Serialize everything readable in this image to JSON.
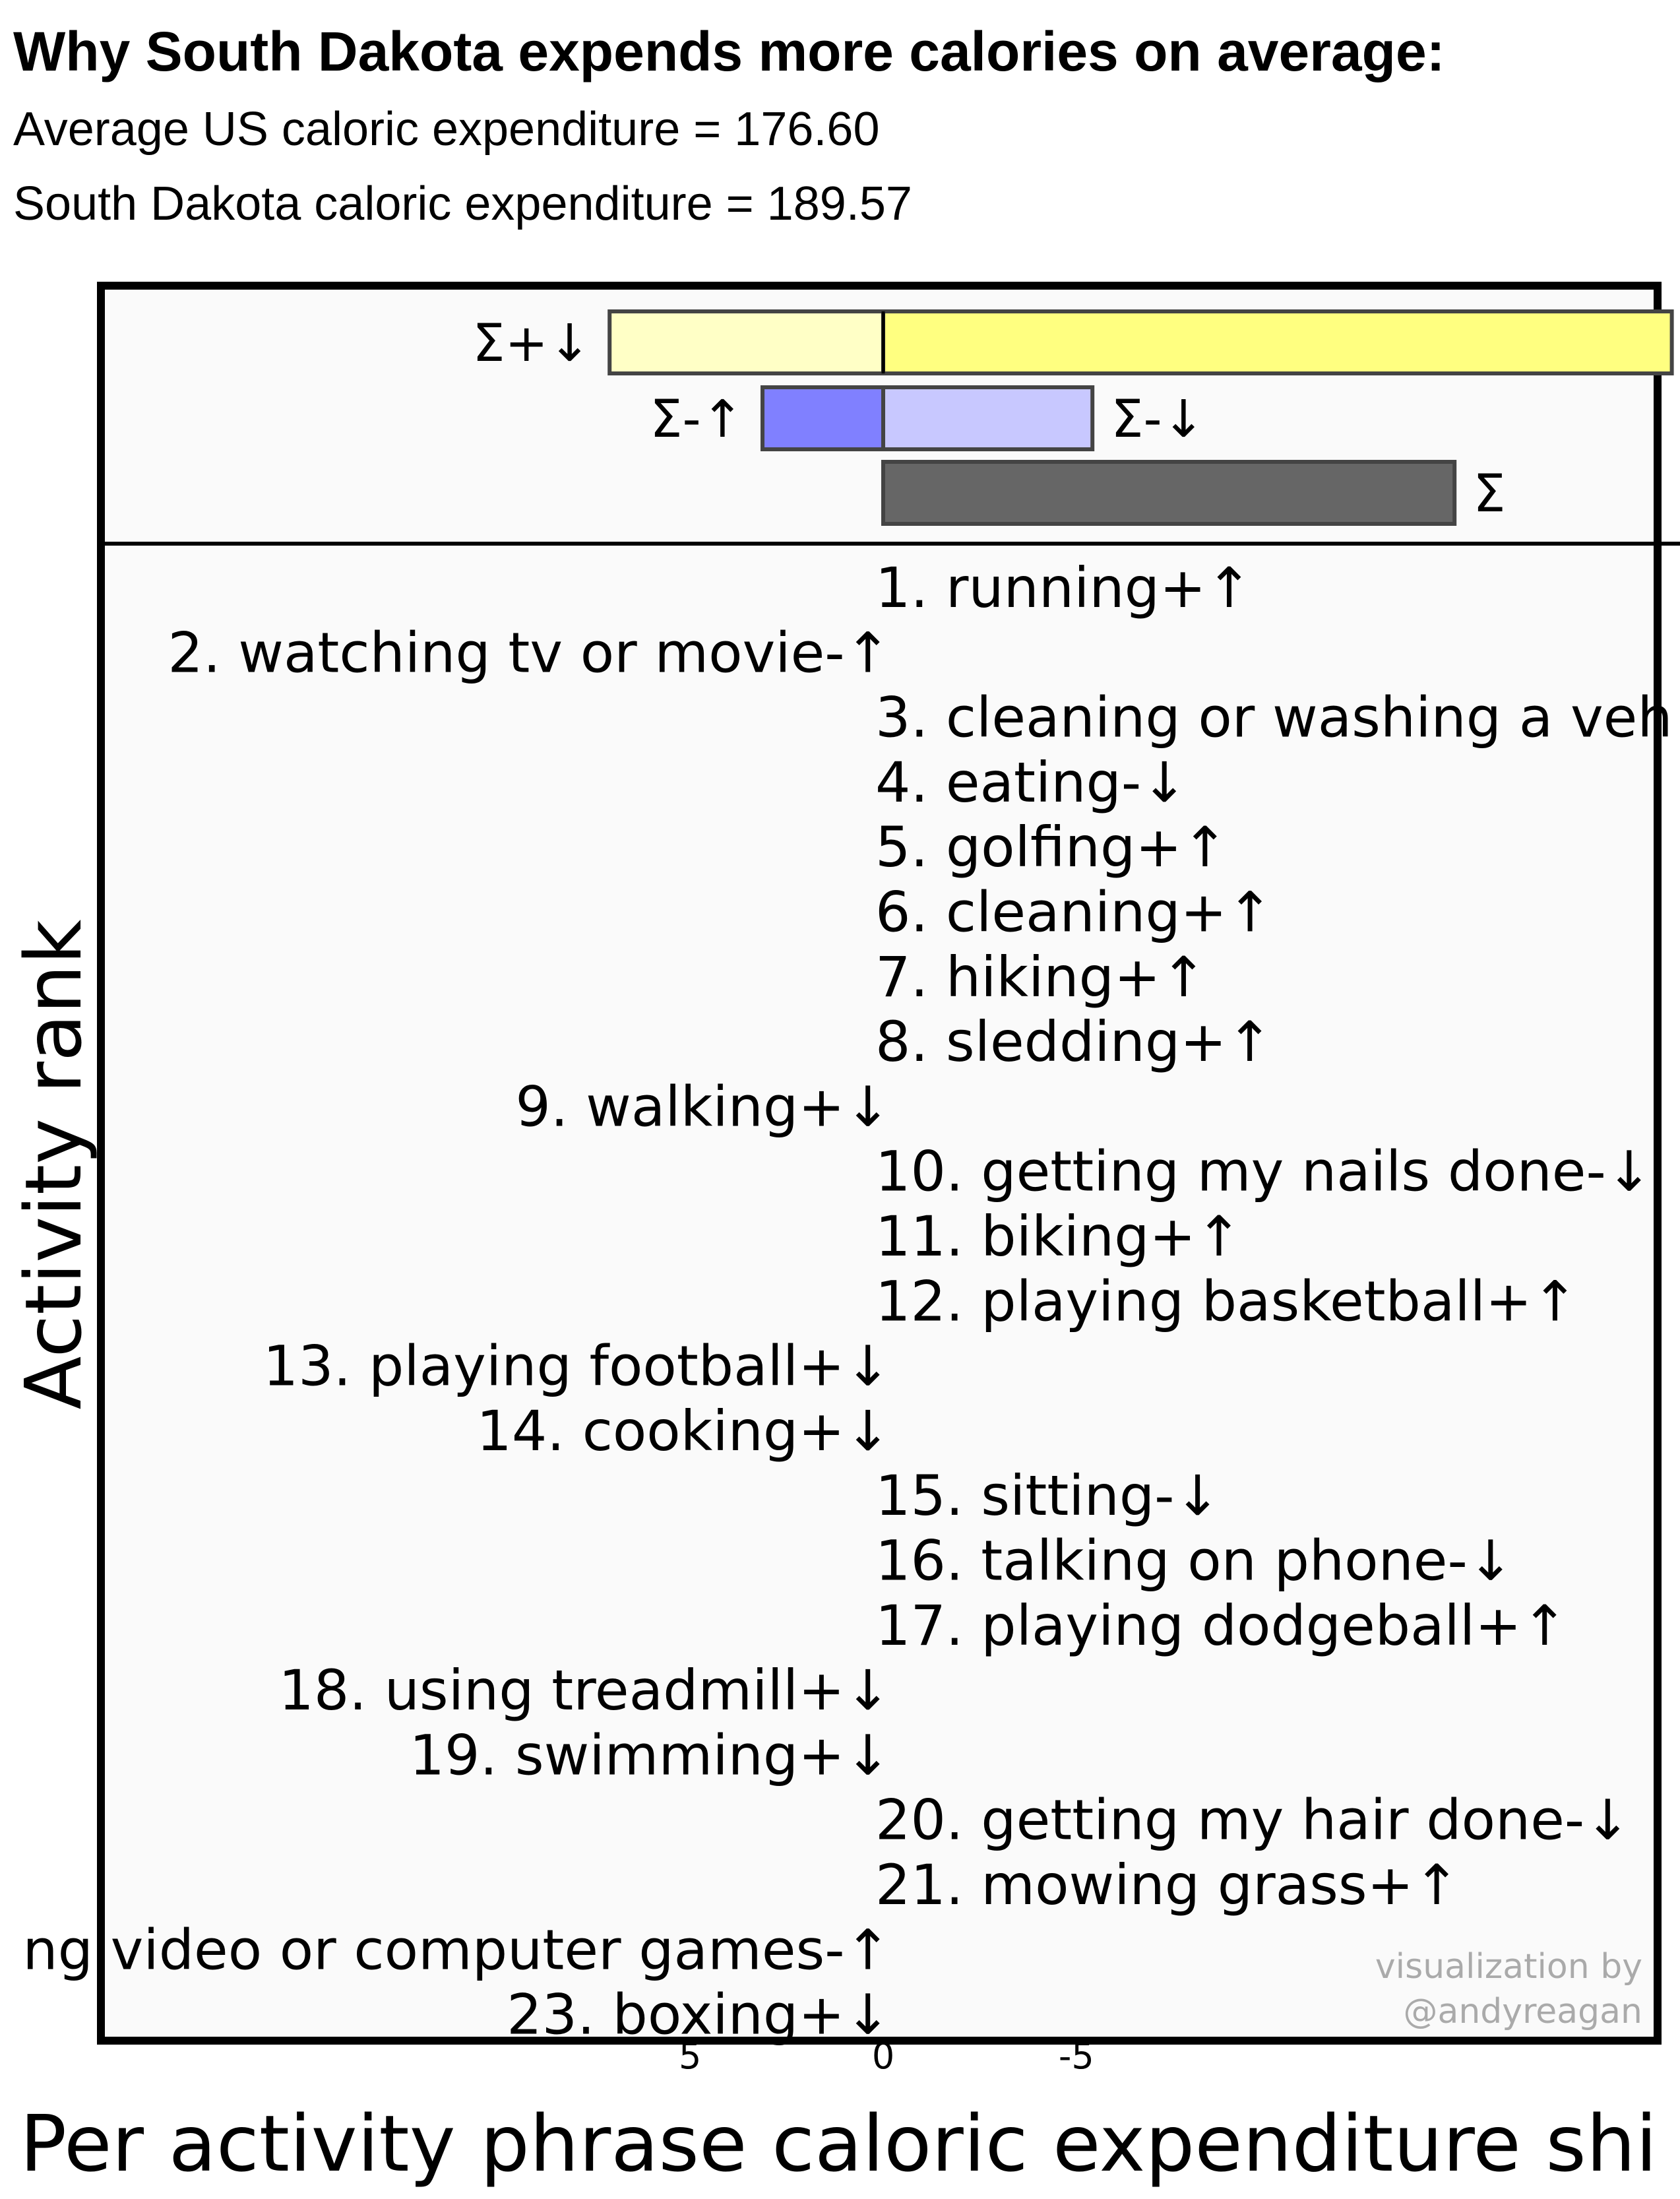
{
  "header": {
    "title": "Why South Dakota expends more calories on average:",
    "avg_line": "Average US caloric expenditure = 176.60",
    "state_line": "South Dakota caloric expenditure = 189.57"
  },
  "chart_data": {
    "type": "bar",
    "xlabel": "Per activity phrase caloric expenditure shi",
    "ylabel": "Activity rank",
    "x_axis_direction": "reversed",
    "x_ticks": [
      5,
      0,
      -5
    ],
    "summary": {
      "sum_pos_down": {
        "label": "Σ+↓",
        "value": 3.4
      },
      "sum_pos_up": {
        "label": "Σ+↑",
        "value": -9.8
      },
      "sum_neg_up": {
        "label": "Σ-↑",
        "value": 1.5
      },
      "sum_neg_down": {
        "label": "Σ-↓",
        "value": -2.6
      },
      "sum_total": {
        "label": "Σ",
        "value": -7.1
      }
    },
    "activities": [
      {
        "rank": 1,
        "label": "1. running+↑",
        "side": "right"
      },
      {
        "rank": 2,
        "label": "2. watching tv or movie-↑",
        "side": "left"
      },
      {
        "rank": 3,
        "label": "3. cleaning or washing a veh",
        "side": "right"
      },
      {
        "rank": 4,
        "label": "4. eating-↓",
        "side": "right"
      },
      {
        "rank": 5,
        "label": "5. golfing+↑",
        "side": "right"
      },
      {
        "rank": 6,
        "label": "6. cleaning+↑",
        "side": "right"
      },
      {
        "rank": 7,
        "label": "7. hiking+↑",
        "side": "right"
      },
      {
        "rank": 8,
        "label": "8. sledding+↑",
        "side": "right"
      },
      {
        "rank": 9,
        "label": "9. walking+↓",
        "side": "left"
      },
      {
        "rank": 10,
        "label": "10. getting my nails done-↓",
        "side": "right"
      },
      {
        "rank": 11,
        "label": "11. biking+↑",
        "side": "right"
      },
      {
        "rank": 12,
        "label": "12. playing basketball+↑",
        "side": "right"
      },
      {
        "rank": 13,
        "label": "13. playing football+↓",
        "side": "left"
      },
      {
        "rank": 14,
        "label": "14. cooking+↓",
        "side": "left"
      },
      {
        "rank": 15,
        "label": "15. sitting-↓",
        "side": "right"
      },
      {
        "rank": 16,
        "label": "16. talking on phone-↓",
        "side": "right"
      },
      {
        "rank": 17,
        "label": "17. playing dodgeball+↑",
        "side": "right"
      },
      {
        "rank": 18,
        "label": "18. using treadmill+↓",
        "side": "left"
      },
      {
        "rank": 19,
        "label": "19. swimming+↓",
        "side": "left"
      },
      {
        "rank": 20,
        "label": "20. getting my hair done-↓",
        "side": "right"
      },
      {
        "rank": 21,
        "label": "21. mowing grass+↑",
        "side": "right"
      },
      {
        "rank": 22,
        "label": "ng video or computer games-↑",
        "side": "left"
      },
      {
        "rank": 23,
        "label": "23. boxing+↓",
        "side": "left"
      }
    ],
    "credit": [
      "visualization by",
      "@andyreagan"
    ],
    "colors": {
      "sum_pos_down": "#ffffc6",
      "sum_pos_up": "#ffff80",
      "sum_neg_up": "#8080ff",
      "sum_neg_down": "#c8c8ff",
      "sum_total": "#666666",
      "panel_background": "#fafafa"
    }
  }
}
